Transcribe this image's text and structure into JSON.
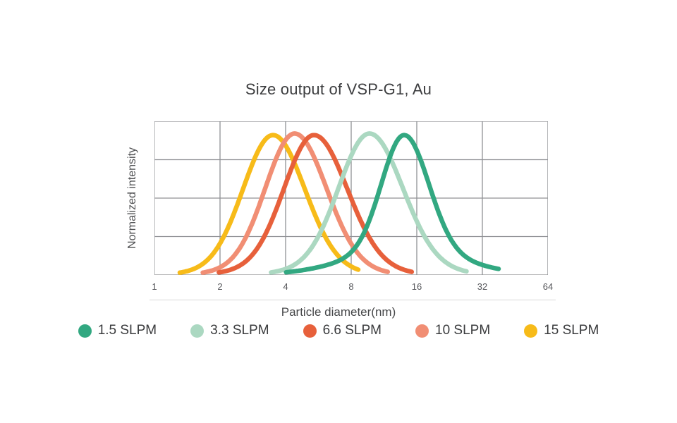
{
  "title": "Size output of VSP-G1, Au",
  "chart_data": {
    "type": "line",
    "title": "Size output of VSP-G1, Au",
    "xlabel": "Particle diameter(nm)",
    "ylabel": "Normalized intensity",
    "x_scale": "log2",
    "x_range": [
      1,
      64
    ],
    "x_ticks": [
      "1",
      "2",
      "4",
      "8",
      "16",
      "32",
      "64"
    ],
    "y_axis": "normalized intensity, unlabeled ticks, 4 horizontal grid rows",
    "grid": true,
    "grid_color": "#909195",
    "legend_position": "bottom",
    "curve_shape": "lognormal-like size distribution, all peaks at equal normalized height",
    "series": [
      {
        "label": "1.5 SLPM",
        "color": "#32a881",
        "peak_nm": 14,
        "peak_height": 0.91,
        "sigma_left": 0.34,
        "sigma_right": 0.37,
        "tail_weight": 0.18,
        "tail_sigma": 0.85,
        "domain": [
          -1.8,
          1.45
        ]
      },
      {
        "label": "3.3 SLPM",
        "color": "#abd8c1",
        "peak_nm": 9.7,
        "peak_height": 0.92,
        "sigma_left": 0.46,
        "sigma_right": 0.5,
        "tail_weight": 0.1,
        "tail_sigma": 0.75,
        "domain": [
          -1.5,
          1.48
        ]
      },
      {
        "label": "6.6 SLPM",
        "color": "#e7603b",
        "peak_nm": 5.4,
        "peak_height": 0.91,
        "sigma_left": 0.45,
        "sigma_right": 0.5,
        "tail_weight": 0.1,
        "tail_sigma": 0.72,
        "domain": [
          -1.45,
          1.5
        ]
      },
      {
        "label": "10 SLPM",
        "color": "#f18e74",
        "peak_nm": 4.4,
        "peak_height": 0.92,
        "sigma_left": 0.44,
        "sigma_right": 0.48,
        "tail_weight": 0.08,
        "tail_sigma": 0.7,
        "domain": [
          -1.4,
          1.42
        ]
      },
      {
        "label": "15 SLPM",
        "color": "#f7bb19",
        "peak_nm": 3.5,
        "peak_height": 0.91,
        "sigma_left": 0.45,
        "sigma_right": 0.48,
        "tail_weight": 0.08,
        "tail_sigma": 0.7,
        "domain": [
          -1.42,
          1.3
        ]
      }
    ],
    "draw_order": "reverse of legend order (15 SLPM at back, 1.5 SLPM in front)"
  }
}
